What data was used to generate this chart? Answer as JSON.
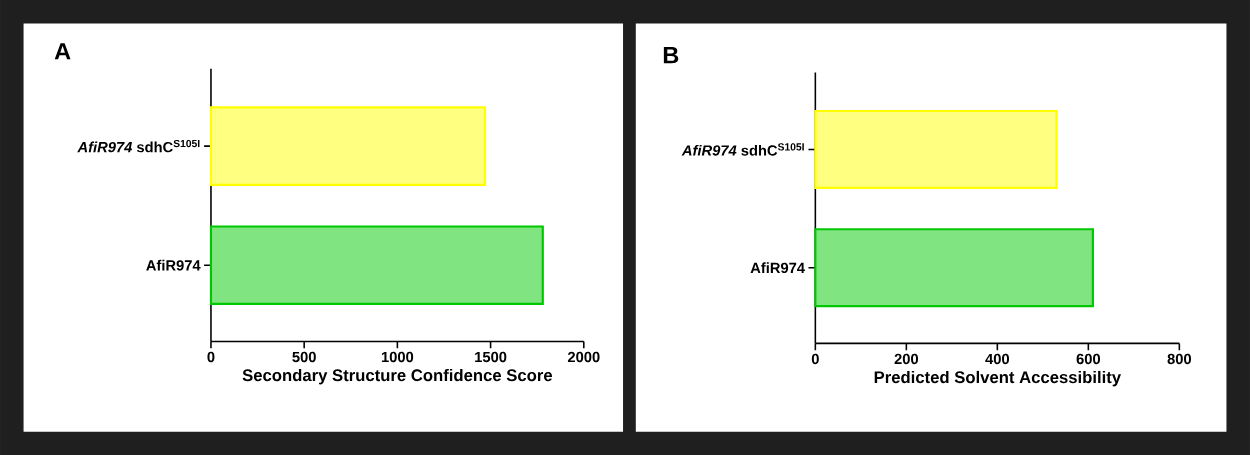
{
  "chart_data": [
    {
      "type": "bar",
      "orientation": "horizontal",
      "title": "A",
      "xlabel": "Secondary Structure Confidence Score",
      "categories": [
        "*AfiR974* sdhC$^{S105I}$",
        "AfiR974"
      ],
      "values": [
        1470,
        1780
      ],
      "colors": [
        "#ffff00",
        "#00c800"
      ],
      "xlim": [
        0,
        2000
      ],
      "xticks": [
        0,
        500,
        1000,
        1500,
        2000
      ]
    },
    {
      "type": "bar",
      "orientation": "horizontal",
      "title": "B",
      "xlabel": "Predicted Solvent Accessibility",
      "categories": [
        "*AfiR974* sdhC$^{S105I}$",
        "AfiR974"
      ],
      "values": [
        530,
        610
      ],
      "colors": [
        "#ffff00",
        "#00c800"
      ],
      "xlim": [
        0,
        800
      ],
      "xticks": [
        0,
        200,
        400,
        600,
        800
      ]
    }
  ]
}
